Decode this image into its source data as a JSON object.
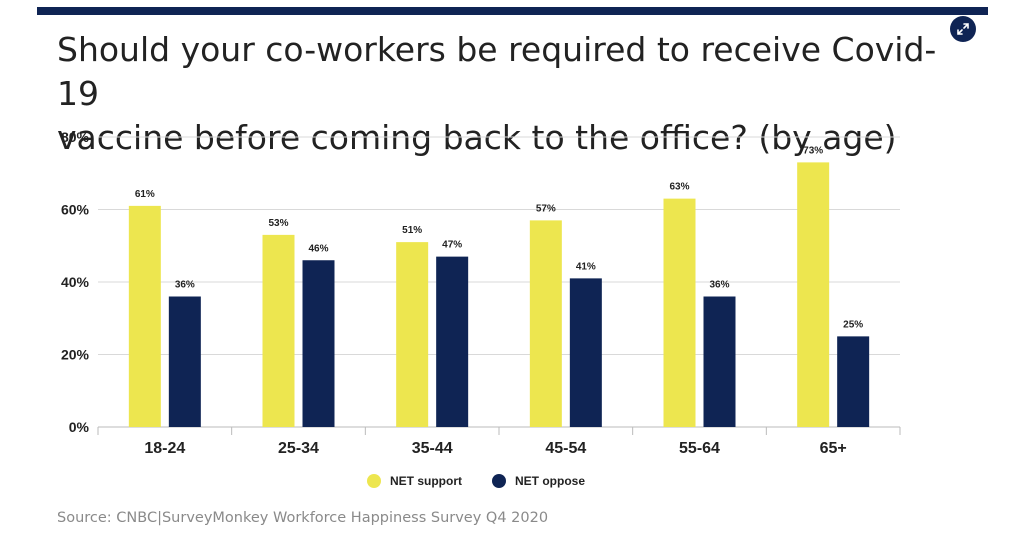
{
  "header": {
    "title_line1": "Should your co-workers be required to receive Covid-19",
    "title_line2": "vaccine before coming back to the office? (by age)",
    "expand_icon": "expand-arrows-icon"
  },
  "chart_data": {
    "type": "bar",
    "title": "Should your co-workers be required to receive Covid-19 vaccine before coming back to the office? (by age)",
    "categories": [
      "18-24",
      "25-34",
      "35-44",
      "45-54",
      "55-64",
      "65+"
    ],
    "series": [
      {
        "name": "NET support",
        "color": "#ede64f",
        "values": [
          61,
          53,
          51,
          57,
          63,
          73
        ]
      },
      {
        "name": "NET oppose",
        "color": "#0f2454",
        "values": [
          36,
          46,
          47,
          41,
          36,
          25
        ]
      }
    ],
    "y_ticks": [
      "0%",
      "20%",
      "40%",
      "60%",
      "80%"
    ],
    "ylim": [
      0,
      80
    ],
    "value_suffix": "%",
    "grid": true,
    "legend_position": "bottom-center",
    "xlabel": "",
    "ylabel": ""
  },
  "legend": {
    "support_label": "NET support",
    "oppose_label": "NET oppose"
  },
  "footer": {
    "source": "Source: CNBC|SurveyMonkey Workforce Happiness Survey Q4 2020"
  }
}
